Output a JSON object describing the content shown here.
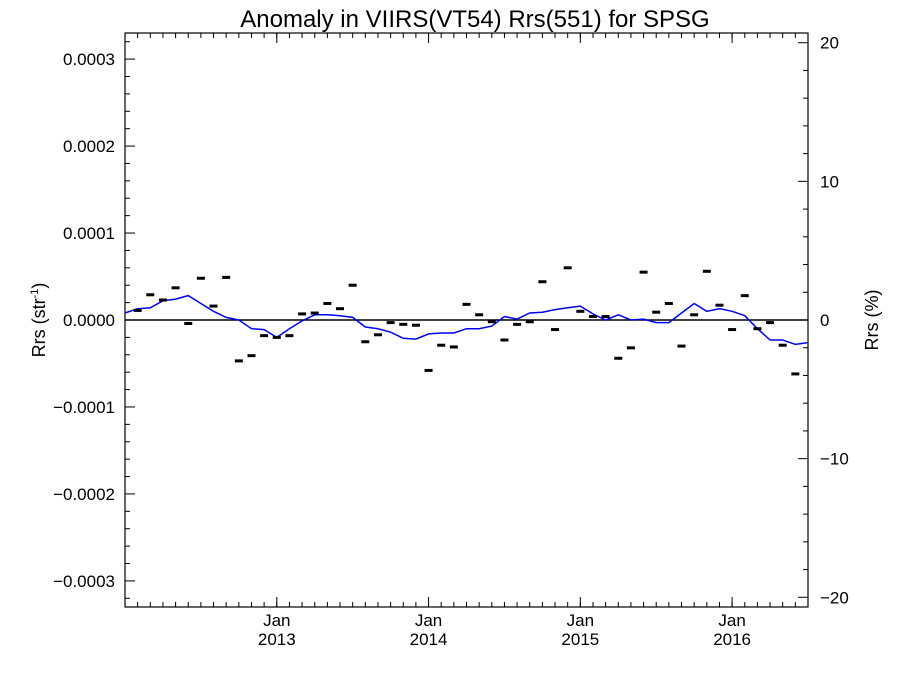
{
  "chart_data": {
    "type": "scatter",
    "title": "Anomaly in VIIRS(VT54) Rrs(551) for SPSG",
    "ylabel": "Rrs (str",
    "ylabel_sup": "-1",
    "ylabel_close": ")",
    "y2label": "Rrs (%)",
    "xlim": [
      "2012-01",
      "2016-07"
    ],
    "ylim": [
      -0.00033,
      0.00033
    ],
    "y2lim": [
      -20.7,
      20.7
    ],
    "x_ticks": [
      {
        "x": "2013-01",
        "month": "Jan",
        "year": "2013"
      },
      {
        "x": "2014-01",
        "month": "Jan",
        "year": "2014"
      },
      {
        "x": "2015-01",
        "month": "Jan",
        "year": "2015"
      },
      {
        "x": "2016-01",
        "month": "Jan",
        "year": "2016"
      }
    ],
    "y_ticks": [
      {
        "value": 0.0003,
        "label": "0.0003"
      },
      {
        "value": 0.0002,
        "label": "0.0002"
      },
      {
        "value": 0.0001,
        "label": "0.0001"
      },
      {
        "value": 0.0,
        "label": "0.0000"
      },
      {
        "value": -0.0001,
        "label": "−0.0001"
      },
      {
        "value": -0.0002,
        "label": "−0.0002"
      },
      {
        "value": -0.0003,
        "label": "−0.0003"
      }
    ],
    "y2_ticks": [
      {
        "value": 20,
        "label": "20"
      },
      {
        "value": 10,
        "label": "10"
      },
      {
        "value": 0,
        "label": "0"
      },
      {
        "value": -10,
        "label": "−10"
      },
      {
        "value": -20,
        "label": "−20"
      }
    ],
    "zero_line": 0,
    "series": [
      {
        "kind": "points",
        "color": "#000000",
        "x": [
          "2012-02",
          "2012-03",
          "2012-04",
          "2012-05",
          "2012-06",
          "2012-07",
          "2012-08",
          "2012-09",
          "2012-10",
          "2012-11",
          "2012-12",
          "2013-01",
          "2013-02",
          "2013-03",
          "2013-04",
          "2013-05",
          "2013-06",
          "2013-07",
          "2013-08",
          "2013-09",
          "2013-10",
          "2013-11",
          "2013-12",
          "2014-01",
          "2014-02",
          "2014-03",
          "2014-04",
          "2014-05",
          "2014-06",
          "2014-07",
          "2014-08",
          "2014-09",
          "2014-10",
          "2014-11",
          "2014-12",
          "2015-01",
          "2015-02",
          "2015-03",
          "2015-04",
          "2015-05",
          "2015-06",
          "2015-07",
          "2015-08",
          "2015-09",
          "2015-10",
          "2015-11",
          "2015-12",
          "2016-01",
          "2016-02",
          "2016-03",
          "2016-04",
          "2016-05",
          "2016-06"
        ],
        "values": [
          1.1e-05,
          2.9e-05,
          2.3e-05,
          3.7e-05,
          -4e-06,
          4.8e-05,
          1.6e-05,
          4.9e-05,
          -4.7e-05,
          -4.1e-05,
          -1.8e-05,
          -2e-05,
          -1.8e-05,
          7e-06,
          8e-06,
          1.9e-05,
          1.3e-05,
          4e-05,
          -2.5e-05,
          -1.7e-05,
          -3e-06,
          -5e-06,
          -6e-06,
          -5.8e-05,
          -2.9e-05,
          -3.1e-05,
          1.8e-05,
          6e-06,
          -2e-06,
          -2.3e-05,
          -5e-06,
          -2e-06,
          4.4e-05,
          -1.1e-05,
          6e-05,
          1e-05,
          4e-06,
          4e-06,
          -4.4e-05,
          -3.2e-05,
          5.5e-05,
          9e-06,
          1.9e-05,
          -3e-05,
          6e-06,
          5.6e-05,
          1.7e-05,
          -1.1e-05,
          2.8e-05,
          -1e-05,
          -3e-06,
          -2.9e-05,
          -6.2e-05
        ]
      },
      {
        "kind": "line",
        "color": "#0000ff",
        "x": [
          "2012-01",
          "2012-02",
          "2012-03",
          "2012-04",
          "2012-05",
          "2012-06",
          "2012-07",
          "2012-08",
          "2012-09",
          "2012-10",
          "2012-11",
          "2012-12",
          "2013-01",
          "2013-02",
          "2013-03",
          "2013-04",
          "2013-05",
          "2013-06",
          "2013-07",
          "2013-08",
          "2013-09",
          "2013-10",
          "2013-11",
          "2013-12",
          "2014-01",
          "2014-02",
          "2014-03",
          "2014-04",
          "2014-05",
          "2014-06",
          "2014-07",
          "2014-08",
          "2014-09",
          "2014-10",
          "2014-11",
          "2014-12",
          "2015-01",
          "2015-02",
          "2015-03",
          "2015-04",
          "2015-05",
          "2015-06",
          "2015-07",
          "2015-08",
          "2015-09",
          "2015-10",
          "2015-11",
          "2015-12",
          "2016-01",
          "2016-02",
          "2016-03",
          "2016-04",
          "2016-05",
          "2016-06",
          "2016-07"
        ],
        "values": [
          8e-06,
          1.3e-05,
          1.4e-05,
          2.2e-05,
          2.4e-05,
          2.8e-05,
          1.9e-05,
          1e-05,
          3e-06,
          0.0,
          -1e-05,
          -1.1e-05,
          -2e-05,
          -1e-05,
          -1e-06,
          6e-06,
          6e-06,
          5e-06,
          3e-06,
          -8e-06,
          -1e-05,
          -1.4e-05,
          -2.1e-05,
          -2.2e-05,
          -1.6e-05,
          -1.5e-05,
          -1.5e-05,
          -1e-05,
          -1e-05,
          -7e-06,
          4e-06,
          1e-06,
          8e-06,
          9e-06,
          1.2e-05,
          1.4e-05,
          1.6e-05,
          7e-06,
          0.0,
          6e-06,
          0.0,
          1e-06,
          -3e-06,
          -3e-06,
          8e-06,
          1.9e-05,
          1e-05,
          1.3e-05,
          1e-05,
          5e-06,
          -1e-05,
          -2.3e-05,
          -2.3e-05,
          -2.8e-05,
          -2.6e-05
        ]
      }
    ]
  }
}
